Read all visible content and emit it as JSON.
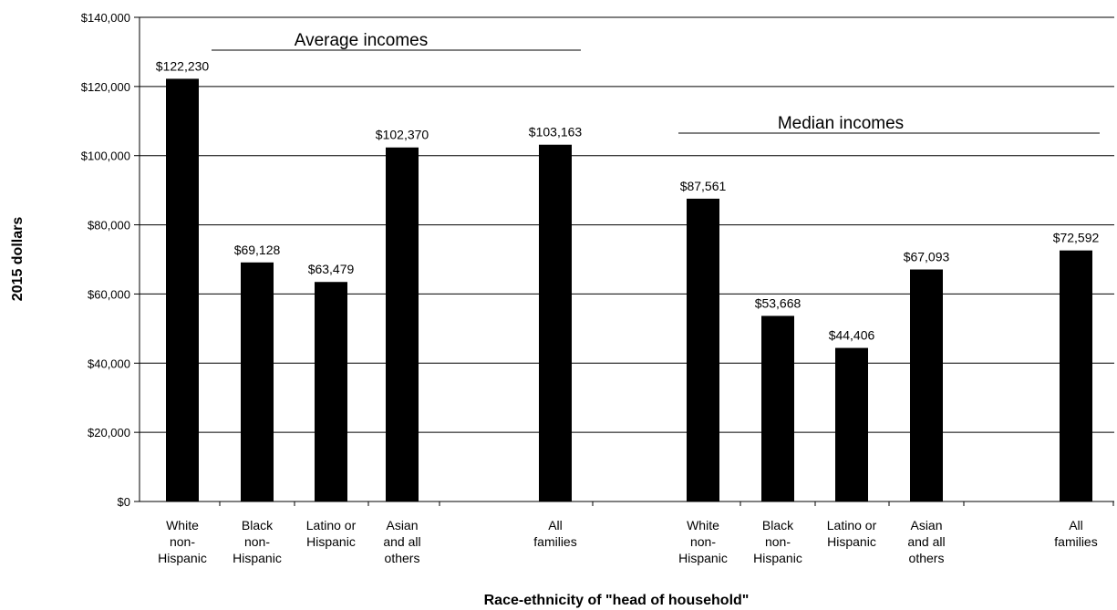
{
  "chart_data": {
    "type": "bar",
    "xlabel": "Race-ethnicity of \"head of household\"",
    "ylabel": "2015 dollars",
    "ylim": [
      0,
      140000
    ],
    "yticks": [
      0,
      20000,
      40000,
      60000,
      80000,
      100000,
      120000,
      140000
    ],
    "ytick_labels": [
      "$0",
      "$20,000",
      "$40,000",
      "$60,000",
      "$80,000",
      "$100,000",
      "$120,000",
      "$140,000"
    ],
    "grid": true,
    "bar_color": "#000000",
    "groups": [
      {
        "label": "Average incomes",
        "bars": [
          {
            "category": [
              "White",
              "non-",
              "Hispanic"
            ],
            "value": 122230,
            "label": "$122,230"
          },
          {
            "category": [
              "Black",
              "non-",
              "Hispanic"
            ],
            "value": 69128,
            "label": "$69,128"
          },
          {
            "category": [
              "Latino or",
              "Hispanic"
            ],
            "value": 63479,
            "label": "$63,479"
          },
          {
            "category": [
              "Asian",
              "and all",
              "others"
            ],
            "value": 102370,
            "label": "$102,370"
          },
          {
            "category": [
              "All",
              "families"
            ],
            "value": 103163,
            "label": "$103,163"
          }
        ]
      },
      {
        "label": "Median incomes",
        "bars": [
          {
            "category": [
              "White",
              "non-",
              "Hispanic"
            ],
            "value": 87561,
            "label": "$87,561"
          },
          {
            "category": [
              "Black",
              "non-",
              "Hispanic"
            ],
            "value": 53668,
            "label": "$53,668"
          },
          {
            "category": [
              "Latino or",
              "Hispanic"
            ],
            "value": 44406,
            "label": "$44,406"
          },
          {
            "category": [
              "Asian",
              "and all",
              "others"
            ],
            "value": 67093,
            "label": "$67,093"
          },
          {
            "category": [
              "All",
              "families"
            ],
            "value": 72592,
            "label": "$72,592"
          }
        ]
      }
    ]
  }
}
